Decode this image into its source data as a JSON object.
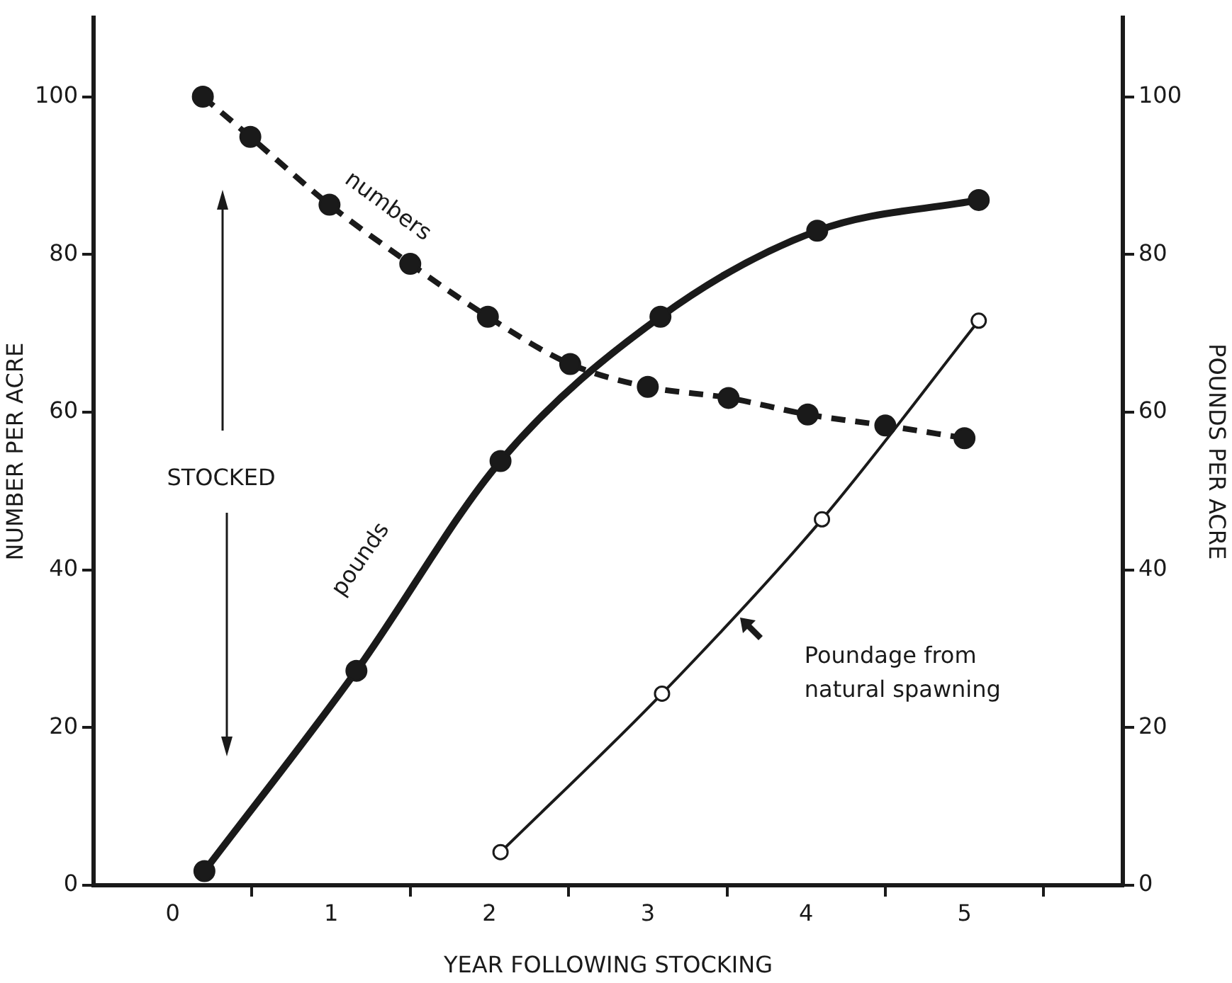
{
  "chart_data": {
    "type": "line",
    "xlabel": "YEAR FOLLOWING STOCKING",
    "ylabel": "NUMBER PER ACRE",
    "y2label": "POUNDS PER ACRE",
    "xlim": [
      -0.5,
      6
    ],
    "xticks": [
      0,
      1,
      2,
      3,
      4,
      5,
      {
        "value": 0.5,
        "label": null
      },
      {
        "value": 1.5,
        "label": null
      },
      {
        "value": 2.5,
        "label": null
      },
      {
        "value": 3.5,
        "label": null
      },
      {
        "value": 4.5,
        "label": null
      },
      {
        "value": 5.5,
        "label": null
      }
    ],
    "ylim": [
      0,
      110
    ],
    "yticks": [
      0,
      20,
      40,
      60,
      80,
      100
    ],
    "y2lim": [
      0,
      110
    ],
    "y2ticks": [
      0,
      20,
      40,
      60,
      80,
      100
    ],
    "grid": false,
    "legend": false,
    "marker": "circle",
    "annotations": [
      "STOCKED"
    ],
    "series": [
      {
        "name": "numbers",
        "color": "#1a1a1a",
        "line_style": "dashed",
        "x": [
          0.19,
          0.49,
          0.99,
          1.5,
          1.99,
          2.51,
          3.0,
          3.51,
          4.01,
          4.5,
          5.0
        ],
        "values": [
          100,
          94.9,
          86.3,
          78.8,
          72.1,
          66.1,
          63.2,
          61.8,
          59.7,
          58.3,
          56.7
        ]
      },
      {
        "name": "pounds",
        "color": "#1a1a1a",
        "line_style": "solid",
        "axis": "y2",
        "x": [
          0.2,
          1.16,
          2.07,
          3.08,
          4.07,
          5.09
        ],
        "values": [
          1.8,
          27.2,
          53.8,
          72.1,
          83.0,
          86.9
        ]
      },
      {
        "name": "Poundage from natural spawning",
        "color": "#1a1a1a",
        "line_style": "solid",
        "axis": "y2",
        "x": [
          2.07,
          3.09,
          4.1,
          5.09
        ],
        "values": [
          4.2,
          24.3,
          46.4,
          71.6
        ]
      }
    ]
  }
}
